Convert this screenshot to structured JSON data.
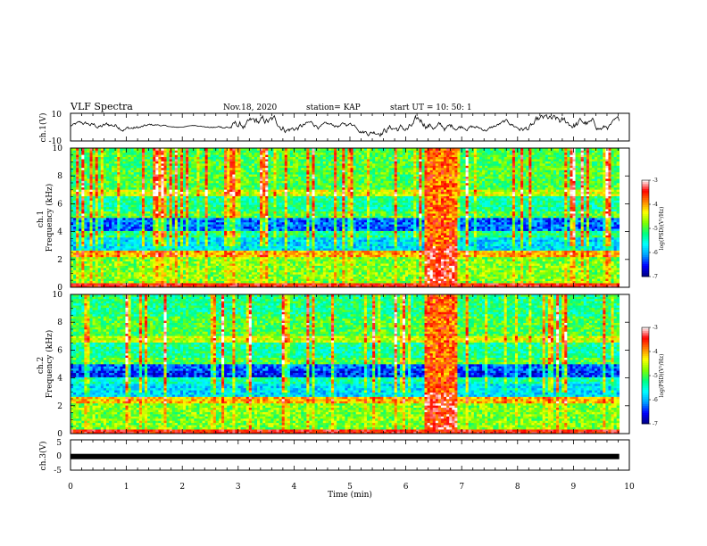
{
  "header": {
    "title": "VLF Spectra",
    "date": "Nov.18, 2020",
    "station": "station= KAP",
    "start": "start  UT =   10: 50: 1"
  },
  "chart_data": [
    {
      "type": "line",
      "panel": "ch1-waveform",
      "ylabel": "ch.1(V)",
      "ylim": [
        -10,
        10
      ],
      "yticks": [
        "10",
        "-10"
      ],
      "xlim": [
        0,
        10
      ],
      "note_values": "noisy voltage trace around 0 V, amplitude roughly -3 to +5 V"
    },
    {
      "type": "heatmap",
      "panel": "ch1-spectrogram",
      "ylabel": "ch.1\nFrequency  (kHz)",
      "ylim": [
        0,
        10
      ],
      "yticks": [
        "0",
        "2",
        "4",
        "6",
        "8",
        "10"
      ],
      "xlim": [
        0,
        10
      ],
      "x_data_end": 9.82,
      "bright_interval": [
        6.35,
        6.9
      ],
      "colorbar": {
        "label": "log(PSD)(V²/Hz)",
        "range": [
          -7,
          -3
        ],
        "ticks": [
          "-3",
          "-4",
          "-5",
          "-6",
          "-7"
        ]
      }
    },
    {
      "type": "heatmap",
      "panel": "ch2-spectrogram",
      "ylabel": "ch.2\nFrequency  (kHz)",
      "ylim": [
        0,
        10
      ],
      "yticks": [
        "0",
        "2",
        "4",
        "6",
        "8",
        "10"
      ],
      "xlim": [
        0,
        10
      ],
      "x_data_end": 9.82,
      "bright_interval": [
        6.35,
        6.9
      ],
      "colorbar": {
        "label": "log(PSD)(V²/Hz)",
        "range": [
          -7,
          -3
        ],
        "ticks": [
          "-3",
          "-4",
          "-5",
          "-6",
          "-7"
        ]
      }
    },
    {
      "type": "line",
      "panel": "ch3-waveform",
      "ylabel": "ch.3(V)",
      "ylim": [
        -5,
        5
      ],
      "yticks": [
        "5",
        "0",
        "-5"
      ],
      "xlim": [
        0,
        10
      ],
      "xlabel": "Time  (min)",
      "xticks": [
        "0",
        "1",
        "2",
        "3",
        "4",
        "5",
        "6",
        "7",
        "8",
        "9",
        "10"
      ],
      "constant_value": -0.5
    }
  ],
  "colors": {
    "scale": [
      "#000080",
      "#0000ff",
      "#00a0ff",
      "#00ffff",
      "#00ff80",
      "#80ff00",
      "#ffff00",
      "#ff8000",
      "#ff0000",
      "#ffffff"
    ]
  }
}
